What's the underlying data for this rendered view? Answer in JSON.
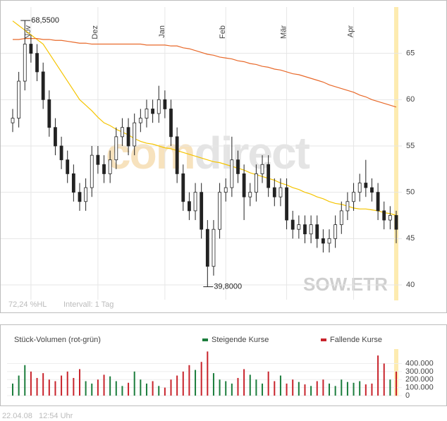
{
  "chart_data": [
    {
      "type": "candlestick",
      "categories": [
        null,
        null,
        null,
        "Nov",
        null,
        null,
        null,
        null,
        null,
        null,
        null,
        null,
        null,
        null,
        "Dez",
        null,
        null,
        null,
        null,
        null,
        null,
        null,
        null,
        null,
        null,
        "Jan",
        null,
        null,
        null,
        null,
        null,
        null,
        null,
        null,
        null,
        "Feb",
        null,
        null,
        null,
        null,
        null,
        null,
        null,
        null,
        null,
        "Mär",
        null,
        null,
        null,
        null,
        null,
        null,
        null,
        null,
        null,
        null,
        "Apr",
        null,
        null,
        null,
        null,
        null,
        null,
        null
      ],
      "open": [
        57.5,
        58,
        62,
        66,
        65,
        63,
        60,
        57,
        55,
        53.5,
        52,
        50,
        49,
        50.5,
        54,
        53,
        52,
        53.5,
        56,
        57,
        55,
        57.5,
        58,
        59,
        58.5,
        60,
        59,
        56,
        52,
        49,
        48,
        50,
        46,
        42,
        46,
        50,
        50.5,
        53.5,
        52,
        49.5,
        50,
        52,
        53,
        50.5,
        49.5,
        50.5,
        47,
        46,
        46.5,
        45.5,
        46.5,
        45,
        44.5,
        45,
        46.5,
        48,
        49,
        50,
        51,
        50.5,
        50,
        48,
        47,
        47.5
      ],
      "high": [
        59,
        63,
        68.55,
        67,
        66,
        64,
        61,
        58,
        56,
        54.5,
        53,
        51,
        51.5,
        55,
        55,
        54,
        54.5,
        57,
        58,
        58,
        58.5,
        59,
        60,
        60,
        61.5,
        61,
        60,
        57,
        53,
        50,
        51,
        51,
        47,
        47,
        51,
        51.5,
        56,
        54.5,
        53,
        51,
        53,
        54,
        54,
        51.5,
        51.5,
        51.5,
        48,
        47.5,
        47.5,
        47.5,
        47.5,
        46,
        46,
        47.5,
        49,
        50,
        51,
        52,
        53.5,
        51.5,
        51,
        49,
        48.5,
        48
      ],
      "low": [
        56.5,
        57,
        61,
        64,
        62,
        59,
        56,
        54,
        52.5,
        51,
        49,
        48,
        48,
        49.5,
        52,
        51,
        51,
        52.5,
        55,
        54,
        54,
        56.5,
        57,
        57.5,
        57.5,
        58,
        55,
        51,
        48,
        47,
        47,
        45,
        39.8,
        41,
        45,
        49,
        49.5,
        51,
        47,
        48.5,
        49,
        51,
        49.5,
        48.5,
        48.5,
        46,
        45,
        45,
        44.5,
        44.5,
        44,
        43.5,
        43.5,
        44,
        45.5,
        47,
        48,
        49,
        49.5,
        49,
        47,
        46,
        46,
        44.5
      ],
      "close": [
        58,
        62,
        66,
        65,
        63,
        60,
        57,
        55,
        53.5,
        52,
        50,
        49,
        50.5,
        54,
        53,
        52,
        53.5,
        56,
        57,
        55,
        57.5,
        58,
        59,
        58.5,
        60,
        59,
        56,
        52,
        49,
        48,
        50,
        46,
        42,
        46,
        50,
        50.5,
        53.5,
        52,
        49.5,
        50,
        52,
        53,
        50.5,
        49.5,
        50.5,
        47,
        46,
        46.5,
        45.5,
        46.5,
        45,
        44.5,
        45,
        46.5,
        48,
        49,
        50,
        51,
        50.5,
        50,
        48,
        47,
        47.5,
        46
      ],
      "candle_color": "#222222",
      "series": [
        {
          "color": "#f5c400",
          "values": [
            68.5,
            68,
            67.5,
            67,
            66.5,
            66,
            65,
            64,
            63,
            62,
            61,
            60,
            59.4,
            58.8,
            58.1,
            57.5,
            57.2,
            56.8,
            56.5,
            56.2,
            55.8,
            55.5,
            55.3,
            55.2,
            55,
            54.8,
            54.7,
            54.5,
            54.3,
            54.1,
            53.9,
            53.7,
            53.5,
            53.3,
            53.2,
            53,
            52.8,
            52.6,
            52.4,
            52.1,
            51.9,
            51.7,
            51.5,
            51.3,
            51,
            50.8,
            50.5,
            50.3,
            50,
            49.8,
            49.5,
            49.3,
            49,
            48.8,
            48.7,
            48.5,
            48.3,
            48.2,
            48.2,
            48.1,
            48,
            47.8,
            47.7,
            47.5
          ]
        },
        {
          "color": "#e8692a",
          "values": [
            66.5,
            66.5,
            66.6,
            66.6,
            66.6,
            66.5,
            66.5,
            66.4,
            66.4,
            66.3,
            66.2,
            66.1,
            66.1,
            66,
            66,
            66,
            66,
            66,
            66,
            66,
            66,
            66,
            65.9,
            65.9,
            65.9,
            65.9,
            65.8,
            65.8,
            65.6,
            65.5,
            65.3,
            65.1,
            64.9,
            64.8,
            64.6,
            64.5,
            64.4,
            64.2,
            64.1,
            63.9,
            63.8,
            63.6,
            63.5,
            63.3,
            63.2,
            63,
            62.8,
            62.7,
            62.5,
            62.3,
            62.1,
            61.9,
            61.6,
            61.4,
            61.2,
            61,
            60.8,
            60.5,
            60.3,
            60,
            59.8,
            59.6,
            59.4,
            59.2
          ]
        }
      ],
      "ylim": [
        38.4,
        70
      ],
      "yticks": [
        40,
        45,
        50,
        55,
        60,
        65
      ],
      "grid": true,
      "annotations": [
        {
          "label": "68,5500",
          "value": 68.55
        },
        {
          "label": "39,8000",
          "value": 39.8
        }
      ],
      "watermark_parts": [
        "com",
        "direct"
      ],
      "symbol": "SOW.ETR",
      "info": [
        "72,24 %HL",
        "Intervall: 1 Tag"
      ]
    },
    {
      "type": "bar",
      "title": "Stück-Volumen (rot-grün)",
      "legend": [
        {
          "name": "Steigende Kurse",
          "color": "#1b7d3c"
        },
        {
          "name": "Fallende Kurse",
          "color": "#c8232b"
        }
      ],
      "values": [
        150000,
        250000,
        380000,
        300000,
        220000,
        280000,
        200000,
        180000,
        250000,
        300000,
        220000,
        330000,
        180000,
        150000,
        200000,
        260000,
        240000,
        180000,
        120000,
        160000,
        300000,
        200000,
        150000,
        180000,
        120000,
        100000,
        200000,
        250000,
        300000,
        380000,
        320000,
        420000,
        550000,
        280000,
        200000,
        180000,
        150000,
        220000,
        330000,
        260000,
        200000,
        150000,
        300000,
        180000,
        250000,
        150000,
        200000,
        170000,
        140000,
        120000,
        180000,
        200000,
        150000,
        120000,
        200000,
        170000,
        160000,
        180000,
        140000,
        150000,
        500000,
        400000,
        200000,
        300000
      ],
      "ylim": [
        0,
        580000
      ],
      "yticks": [
        0,
        {
          "value": 100000,
          "label": "100.000"
        },
        {
          "value": 200000,
          "label": "200.000"
        },
        {
          "value": 300000,
          "label": "300.000"
        },
        {
          "value": 400000,
          "label": "400.000"
        }
      ],
      "grid": true
    }
  ],
  "footer": "22.04.08   12:54 Uhr"
}
